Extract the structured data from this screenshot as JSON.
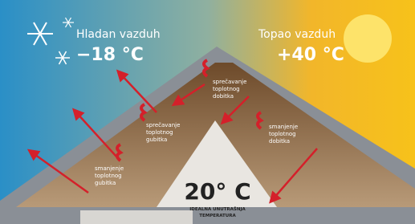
{
  "header": {
    "cold": {
      "label": "Hladan vazduh",
      "temperature": "−18 °C"
    },
    "warm": {
      "label": "Topao vazduh",
      "temperature": "+40 °C"
    }
  },
  "labels": [
    {
      "lines": [
        "sprečavanje",
        "toplotnog",
        "dobitka"
      ]
    },
    {
      "lines": [
        "sprečavanje",
        "toplotnog",
        "gubitka"
      ]
    },
    {
      "lines": [
        "smanjenje",
        "toplotnog",
        "dobitka"
      ]
    },
    {
      "lines": [
        "smanjenje",
        "toplotnog",
        "gubitka"
      ]
    }
  ],
  "center": {
    "temperature": "20° C",
    "caption": [
      "IDEALNA UNUTRAŠNJA",
      "TEMPERATURA"
    ]
  }
}
